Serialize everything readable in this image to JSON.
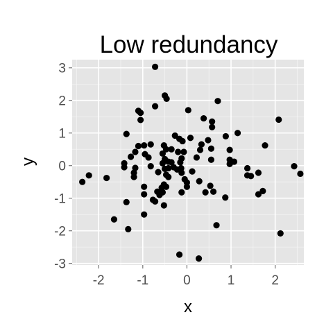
{
  "chart_data": {
    "type": "scatter",
    "title": "Low redundancy",
    "xlabel": "x",
    "ylabel": "y",
    "xlim": [
      -2.6,
      2.65
    ],
    "ylim": [
      -3.05,
      3.25
    ],
    "x_ticks": [
      -2,
      -1,
      0,
      1,
      2
    ],
    "y_ticks": [
      -3,
      -2,
      -1,
      0,
      1,
      2,
      3
    ],
    "x_tick_labels": [
      "-2",
      "-1",
      "0",
      "1",
      "2"
    ],
    "y_tick_labels": [
      "-3",
      "-2",
      "-1",
      "0",
      "1",
      "2",
      "3"
    ],
    "grid": true,
    "panel_background": "#e5e5e5",
    "grid_color": "#ffffff",
    "point_color": "#000000",
    "points": [
      [
        -0.72,
        3.03
      ],
      [
        -0.72,
        1.82
      ],
      [
        -0.5,
        2.15
      ],
      [
        -0.46,
        2.05
      ],
      [
        0.7,
        1.98
      ],
      [
        -1.1,
        1.68
      ],
      [
        -1.05,
        1.62
      ],
      [
        0.03,
        1.7
      ],
      [
        2.08,
        1.41
      ],
      [
        0.57,
        1.35
      ],
      [
        0.38,
        1.45
      ],
      [
        0.57,
        1.18
      ],
      [
        -1.05,
        1.4
      ],
      [
        -1.37,
        0.97
      ],
      [
        1.15,
        1.0
      ],
      [
        0.88,
        0.9
      ],
      [
        -0.27,
        0.92
      ],
      [
        -0.17,
        0.82
      ],
      [
        0.08,
        0.85
      ],
      [
        -0.1,
        0.75
      ],
      [
        1.77,
        0.62
      ],
      [
        -0.82,
        0.65
      ],
      [
        -0.97,
        0.62
      ],
      [
        -1.1,
        0.6
      ],
      [
        -0.52,
        0.62
      ],
      [
        -0.47,
        0.5
      ],
      [
        -0.35,
        0.5
      ],
      [
        0.33,
        0.65
      ],
      [
        0.48,
        0.78
      ],
      [
        -0.2,
        0.42
      ],
      [
        -0.07,
        0.42
      ],
      [
        0.55,
        0.52
      ],
      [
        0.3,
        0.48
      ],
      [
        0.97,
        0.48
      ],
      [
        -1.17,
        0.42
      ],
      [
        -0.95,
        0.35
      ],
      [
        -0.87,
        0.25
      ],
      [
        -0.55,
        0.37
      ],
      [
        -0.5,
        0.2
      ],
      [
        -0.55,
        0.07
      ],
      [
        -0.42,
        0.12
      ],
      [
        -0.35,
        0.1
      ],
      [
        -0.15,
        0.1
      ],
      [
        -0.12,
        0.22
      ],
      [
        0.22,
        0.25
      ],
      [
        0.55,
        0.18
      ],
      [
        0.97,
        0.18
      ],
      [
        0.97,
        0.05
      ],
      [
        1.07,
        0.12
      ],
      [
        -1.27,
        0.27
      ],
      [
        -1.42,
        0.07
      ],
      [
        -0.82,
        -0.02
      ],
      [
        -1.17,
        -0.07
      ],
      [
        -1.42,
        -0.05
      ],
      [
        -0.5,
        -0.1
      ],
      [
        -0.42,
        -0.08
      ],
      [
        -0.3,
        -0.05
      ],
      [
        -0.13,
        -0.08
      ],
      [
        -0.22,
        -0.12
      ],
      [
        -0.12,
        -0.22
      ],
      [
        0.12,
        -0.18
      ],
      [
        1.37,
        -0.08
      ],
      [
        1.62,
        -0.22
      ],
      [
        2.43,
        -0.02
      ],
      [
        -2.22,
        -0.3
      ],
      [
        -1.82,
        -0.38
      ],
      [
        -2.37,
        -0.5
      ],
      [
        -1.2,
        -0.22
      ],
      [
        -1.2,
        -0.35
      ],
      [
        -0.65,
        -0.2
      ],
      [
        -0.47,
        -0.28
      ],
      [
        -0.42,
        -0.35
      ],
      [
        -0.52,
        -0.58
      ],
      [
        -0.05,
        -0.42
      ],
      [
        0.0,
        -0.52
      ],
      [
        0.28,
        -0.48
      ],
      [
        1.37,
        -0.3
      ],
      [
        1.45,
        -0.32
      ],
      [
        2.57,
        -0.25
      ],
      [
        -0.97,
        -0.65
      ],
      [
        -0.57,
        -0.68
      ],
      [
        -0.47,
        -0.65
      ],
      [
        0.53,
        -0.62
      ],
      [
        0.42,
        -0.82
      ],
      [
        0.6,
        -0.8
      ],
      [
        -0.55,
        -0.82
      ],
      [
        -0.67,
        -0.8
      ],
      [
        -0.62,
        -0.9
      ],
      [
        -0.12,
        -0.82
      ],
      [
        0.0,
        -0.65
      ],
      [
        1.72,
        -0.78
      ],
      [
        1.62,
        -0.88
      ],
      [
        -0.97,
        -0.88
      ],
      [
        -0.77,
        -1.05
      ],
      [
        -0.72,
        -1.1
      ],
      [
        -0.52,
        -1.22
      ],
      [
        0.87,
        -0.98
      ],
      [
        -1.37,
        -1.12
      ],
      [
        -0.97,
        -1.5
      ],
      [
        -1.65,
        -1.65
      ],
      [
        -1.33,
        -1.95
      ],
      [
        0.67,
        -1.83
      ],
      [
        2.12,
        -2.08
      ],
      [
        -0.17,
        -2.73
      ],
      [
        0.27,
        -2.85
      ]
    ]
  }
}
